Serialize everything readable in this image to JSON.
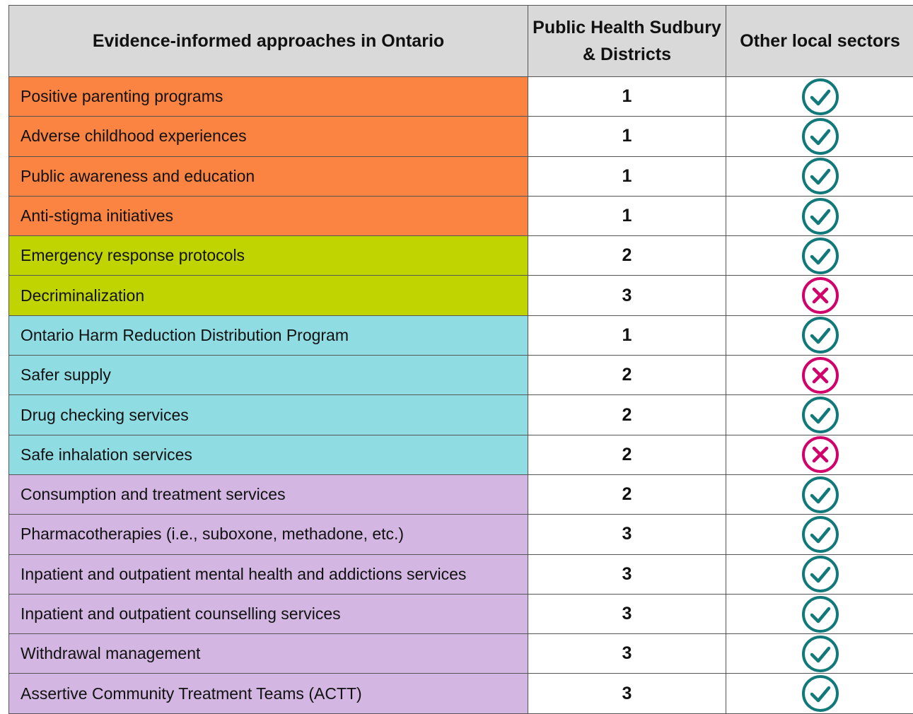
{
  "table": {
    "header": [
      "Evidence-informed approaches in Ontario",
      "Public Health Sudbury & Districts",
      "Other local sectors"
    ],
    "check_color": "#12797a",
    "cross_color": "#d1006b",
    "groups": [
      {
        "color": "#fb8442",
        "rows": [
          {
            "approach": "Positive parenting programs",
            "phsd": 1,
            "other_local": true
          },
          {
            "approach": "Adverse childhood experiences",
            "phsd": 1,
            "other_local": true
          },
          {
            "approach": "Public awareness and education",
            "phsd": 1,
            "other_local": true
          },
          {
            "approach": "Anti-stigma initiatives",
            "phsd": 1,
            "other_local": true
          }
        ]
      },
      {
        "color": "#bfd400",
        "rows": [
          {
            "approach": "Emergency response protocols",
            "phsd": 2,
            "other_local": true
          },
          {
            "approach": "Decriminalization",
            "phsd": 3,
            "other_local": false
          }
        ]
      },
      {
        "color": "#8fdde3",
        "rows": [
          {
            "approach": "Ontario Harm Reduction Distribution Program",
            "phsd": 1,
            "other_local": true
          },
          {
            "approach": "Safer supply",
            "phsd": 2,
            "other_local": false
          },
          {
            "approach": "Drug checking services",
            "phsd": 2,
            "other_local": true
          },
          {
            "approach": "Safe inhalation services",
            "phsd": 2,
            "other_local": false
          }
        ]
      },
      {
        "color": "#d3b7e2",
        "rows": [
          {
            "approach": "Consumption and treatment services",
            "phsd": 2,
            "other_local": true
          },
          {
            "approach": "Pharmacotherapies (i.e., suboxone, methadone, etc.)",
            "phsd": 3,
            "other_local": true
          },
          {
            "approach": "Inpatient and outpatient mental health and addictions services",
            "phsd": 3,
            "other_local": true
          },
          {
            "approach": "Inpatient and outpatient counselling services",
            "phsd": 3,
            "other_local": true
          },
          {
            "approach": "Withdrawal management",
            "phsd": 3,
            "other_local": true
          },
          {
            "approach": "Assertive Community Treatment Teams (ACTT)",
            "phsd": 3,
            "other_local": true
          }
        ]
      }
    ]
  }
}
